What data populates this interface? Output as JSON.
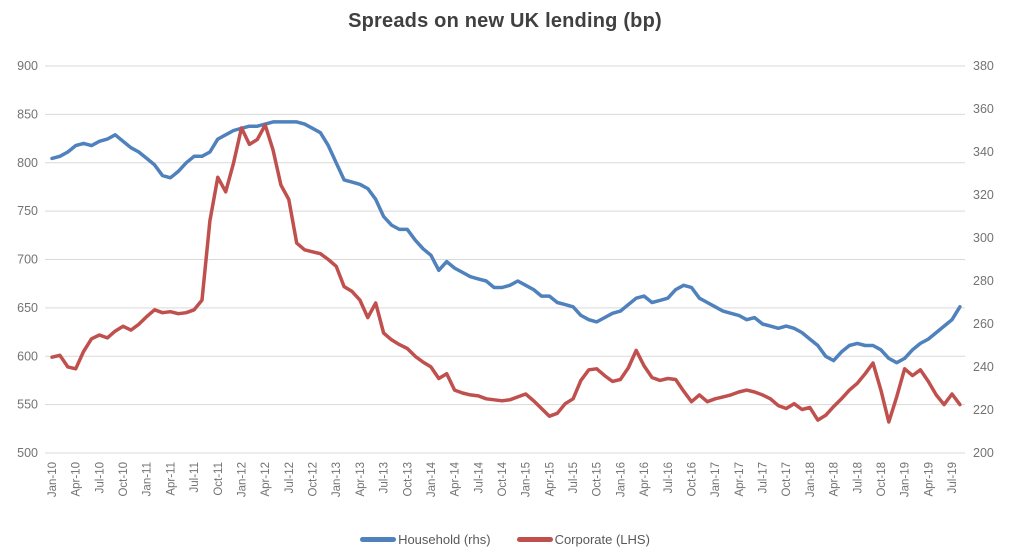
{
  "title": "Spreads on new UK lending (bp)",
  "legend": {
    "items": [
      {
        "label": "Household (rhs)",
        "color": "#4F81BD"
      },
      {
        "label": "Corporate (LHS)",
        "color": "#C0504D"
      }
    ],
    "position": "bottom"
  },
  "chart_data": {
    "type": "line",
    "title": "Spreads on new UK lending (bp)",
    "frequency": "monthly",
    "x_start": "Jan-10",
    "x_end": "Aug-19",
    "grid": true,
    "background": "#ffffff",
    "gridline_color": "#d9d9d9",
    "tick_label_color": "#737373",
    "x_tick_labels": [
      "Jan-10",
      "Apr-10",
      "Jul-10",
      "Oct-10",
      "Jan-11",
      "Apr-11",
      "Jul-11",
      "Oct-11",
      "Jan-12",
      "Apr-12",
      "Jul-12",
      "Oct-12",
      "Jan-13",
      "Apr-13",
      "Jul-13",
      "Oct-13",
      "Jan-14",
      "Apr-14",
      "Jul-14",
      "Oct-14",
      "Jan-15",
      "Apr-15",
      "Jul-15",
      "Oct-15",
      "Jan-16",
      "Apr-16",
      "Jul-16",
      "Oct-16",
      "Jan-17",
      "Apr-17",
      "Jul-17",
      "Oct-17",
      "Jan-18",
      "Apr-18",
      "Jul-18",
      "Oct-18",
      "Jan-19",
      "Apr-19",
      "Jul-19"
    ],
    "axes": {
      "left": {
        "min": 500,
        "max": 900,
        "step": 50,
        "ticks": [
          900,
          850,
          800,
          750,
          700,
          650,
          600,
          550,
          500
        ],
        "series": "Corporate (LHS)"
      },
      "right": {
        "min": 200,
        "max": 380,
        "step": 20,
        "ticks": [
          380,
          360,
          340,
          320,
          300,
          280,
          260,
          240,
          220,
          200
        ],
        "series": "Household (rhs)"
      }
    },
    "series": [
      {
        "name": "Household (rhs)",
        "axis": "right",
        "color": "#4F81BD",
        "values": [
          337,
          338,
          340,
          343,
          344,
          343,
          345,
          346,
          348,
          345,
          342,
          340,
          337,
          334,
          329,
          328,
          331,
          335,
          338,
          338,
          340,
          346,
          348,
          350,
          351,
          352,
          352,
          353,
          354,
          354,
          354,
          354,
          353,
          351,
          349,
          343,
          335,
          327,
          326,
          325,
          323,
          318,
          310,
          306,
          304,
          304,
          299,
          295,
          292,
          285,
          289,
          286,
          284,
          282,
          281,
          280,
          277,
          277,
          278,
          280,
          278,
          276,
          273,
          273,
          270,
          269,
          268,
          264,
          262,
          261,
          263,
          265,
          266,
          269,
          272,
          273,
          270,
          271,
          272,
          276,
          278,
          277,
          272,
          270,
          268,
          266,
          265,
          264,
          262,
          263,
          260,
          259,
          258,
          259,
          258,
          256,
          253,
          250,
          245,
          243,
          247,
          250,
          251,
          250,
          250,
          248,
          244,
          242,
          244,
          248,
          251,
          253,
          256,
          259,
          262,
          268
        ]
      },
      {
        "name": "Corporate (LHS)",
        "axis": "left",
        "color": "#C0504D",
        "values": [
          599,
          601,
          589,
          587,
          605,
          618,
          622,
          619,
          626,
          631,
          627,
          633,
          641,
          648,
          645,
          646,
          644,
          645,
          648,
          658,
          740,
          785,
          770,
          800,
          836,
          819,
          824,
          839,
          813,
          777,
          762,
          717,
          710,
          708,
          706,
          700,
          693,
          672,
          667,
          658,
          640,
          655,
          624,
          617,
          612,
          608,
          600,
          594,
          589,
          577,
          582,
          565,
          562,
          560,
          559,
          556,
          555,
          554,
          555,
          558,
          561,
          554,
          546,
          538,
          541,
          551,
          556,
          575,
          586,
          587,
          580,
          574,
          576,
          588,
          606,
          590,
          578,
          575,
          577,
          576,
          564,
          553,
          560,
          553,
          556,
          558,
          560,
          563,
          565,
          563,
          560,
          556,
          549,
          546,
          551,
          545,
          547,
          534,
          539,
          548,
          556,
          565,
          572,
          582,
          593,
          565,
          532,
          558,
          587,
          580,
          586,
          574,
          560,
          550,
          561,
          550
        ]
      }
    ]
  }
}
